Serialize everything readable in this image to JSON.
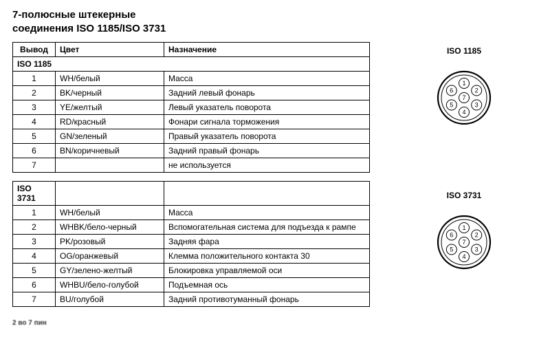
{
  "title_line1": "7-полюсные штекерные",
  "title_line2": "соединения ISO 1185/ISO 3731",
  "headers": {
    "pin": "Вывод",
    "color": "Цвет",
    "function": "Назначение"
  },
  "iso1185": {
    "label": "ISO 1185",
    "rows": [
      {
        "pin": "1",
        "color": "WH/белый",
        "func": "Масса"
      },
      {
        "pin": "2",
        "color": "BK/черный",
        "func": "Задний левый фонарь"
      },
      {
        "pin": "3",
        "color": "YE/желтый",
        "func": "Левый указатель поворота"
      },
      {
        "pin": "4",
        "color": "RD/красный",
        "func": "Фонари сигнала торможения"
      },
      {
        "pin": "5",
        "color": "GN/зеленый",
        "func": "Правый указатель поворота"
      },
      {
        "pin": "6",
        "color": "BN/коричневый",
        "func": "Задний правый фонарь"
      },
      {
        "pin": "7",
        "color": "",
        "func": "не используется"
      }
    ]
  },
  "iso3731": {
    "label": "ISO 3731",
    "rows": [
      {
        "pin": "1",
        "color": "WH/белый",
        "func": "Масса"
      },
      {
        "pin": "2",
        "color": "WHBK/бело-черный",
        "func": "Вспомогательная система для подъезда к рампе"
      },
      {
        "pin": "3",
        "color": "PK/розовый",
        "func": "Задняя фара"
      },
      {
        "pin": "4",
        "color": "OG/оранжевый",
        "func": "Клемма положительного контакта 30"
      },
      {
        "pin": "5",
        "color": "GY/зелено-желтый",
        "func": "Блокировка управляемой оси"
      },
      {
        "pin": "6",
        "color": "WHBU/бело-голубой",
        "func": "Подъемная ось"
      },
      {
        "pin": "7",
        "color": "BU/голубой",
        "func": "Задний противотуманный фонарь"
      }
    ]
  },
  "diagram": {
    "outer_r": 38,
    "inner_r": 33,
    "pin_r": 7.5,
    "center_pin_r": 7.5,
    "pin_ring_r": 21,
    "pins": [
      "1",
      "2",
      "3",
      "4",
      "5",
      "6",
      "7"
    ],
    "stroke": "#000000",
    "fill": "#ffffff",
    "font_size": 9
  },
  "footer": "2 во 7 пин"
}
